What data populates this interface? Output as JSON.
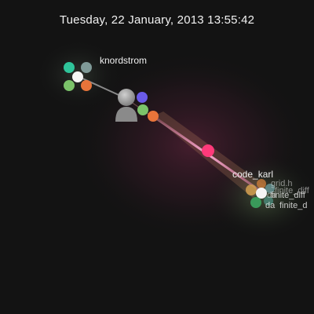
{
  "timestamp": "Tuesday, 22 January, 2013 13:55:42",
  "users": [
    {
      "name": "knordstrom"
    },
    {
      "name": "code_karl"
    }
  ],
  "files": [
    {
      "name": "grid.h"
    },
    {
      "name": "finite_diff"
    },
    {
      "name": "finite_diff"
    },
    {
      "name": "finite_d"
    },
    {
      "name": "da"
    },
    {
      "name": "da"
    }
  ],
  "colors": {
    "background": "#131313",
    "beam": "#ff9ad0",
    "glow": "#7a2a4c",
    "node_teal": "#2fc49a",
    "node_gray": "#7f9a98",
    "node_green": "#7bc36a",
    "node_orange": "#e8743a",
    "node_blue": "#6a5ae8",
    "node_pink": "#ff3a7a",
    "node_white": "#f5f5f5"
  }
}
